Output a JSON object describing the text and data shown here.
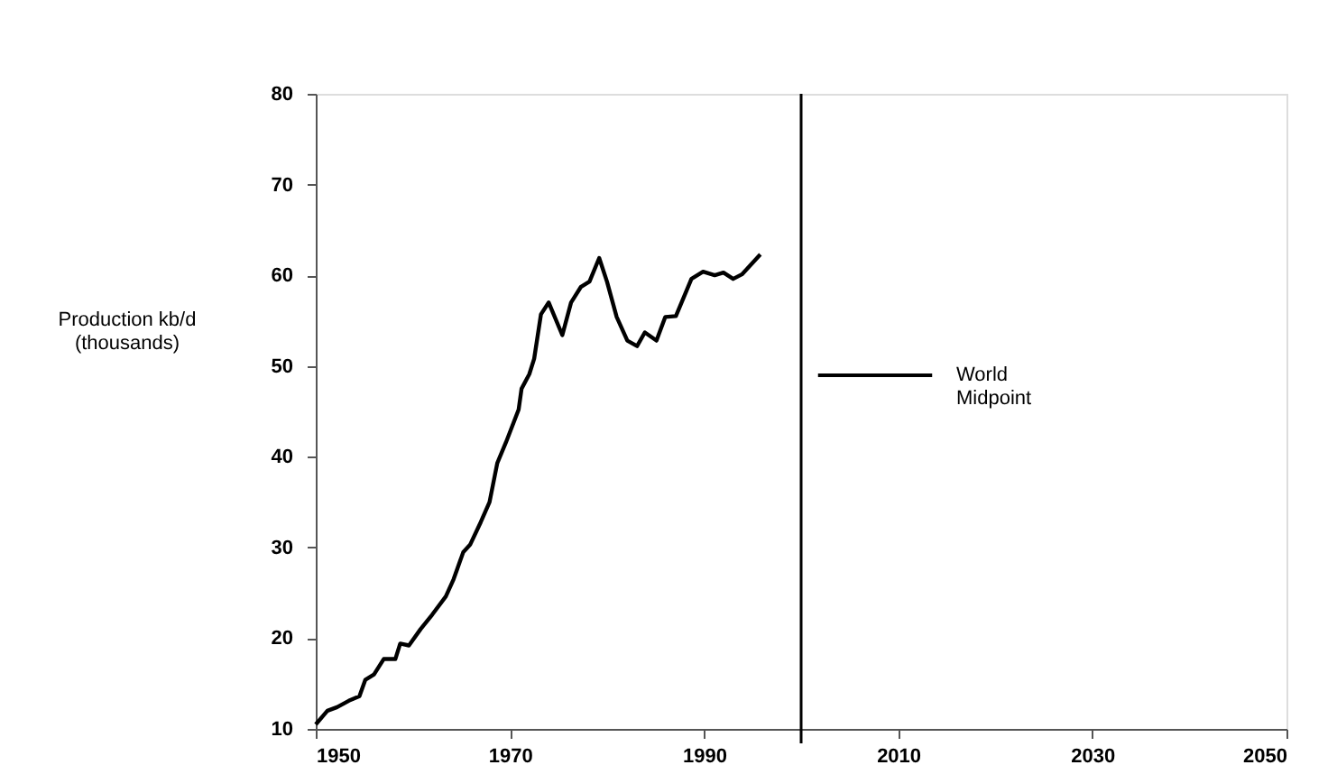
{
  "chart_data": {
    "type": "line",
    "ylabel": "Production kb/d (thousands)",
    "series": [
      {
        "color": "#000000",
        "x": [
          1950,
          1951.2,
          1952.2,
          1953.4,
          1954.5,
          1955.1,
          1956,
          1957,
          1958.2,
          1958.7,
          1959.6,
          1960.8,
          1962,
          1963.4,
          1964.2,
          1965.2,
          1965.9,
          1967,
          1967.9,
          1968.7,
          1969.6,
          1970.9,
          1971.2,
          1972,
          1972.5,
          1973.2,
          1974,
          1975.4,
          1976.3,
          1977.3,
          1978.2,
          1979.2,
          1980,
          1981,
          1982.1,
          1983.1,
          1983.9,
          1985.1,
          1986,
          1987.1,
          1988.7,
          1989.9,
          1991.1,
          1992,
          1993,
          1993.9,
          1995.8
        ],
        "values": [
          10.5,
          12.0,
          12.4,
          13.1,
          13.6,
          15.4,
          16.0,
          17.7,
          17.7,
          19.4,
          19.2,
          21.0,
          22.6,
          24.6,
          26.5,
          29.5,
          30.3,
          32.8,
          35.0,
          39.3,
          41.6,
          45.2,
          47.5,
          49.1,
          50.8,
          55.7,
          57.0,
          53.4,
          57.0,
          58.7,
          59.3,
          61.9,
          59.3,
          55.4,
          52.8,
          52.2,
          53.7,
          52.8,
          55.4,
          55.5,
          59.6,
          60.4,
          60.0,
          60.3,
          59.6,
          60.1,
          62.3
        ]
      }
    ],
    "xlim": [
      1950,
      2050
    ],
    "xticks": [
      1950,
      1970,
      1990,
      2010,
      2030,
      2050
    ],
    "ylim": [
      10,
      80
    ],
    "yticks": [
      10,
      20,
      30,
      40,
      50,
      60,
      70,
      80
    ],
    "ref_lines": [
      {
        "axis": "x",
        "value": 2000,
        "label": "World Midpoint",
        "color": "#000000"
      }
    ],
    "grid": false,
    "legend": "center",
    "marker": "none",
    "line_style": "solid"
  }
}
